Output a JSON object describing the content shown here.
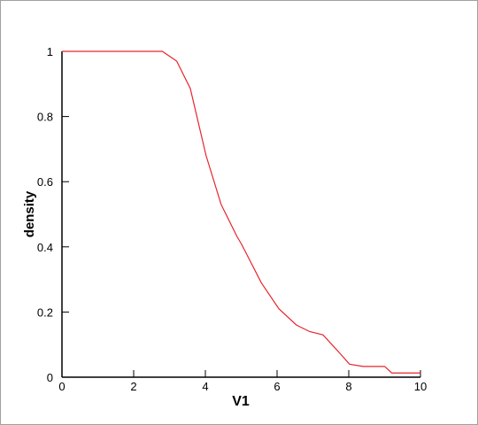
{
  "chart_data": {
    "type": "line",
    "xlabel": "V1",
    "ylabel": "density",
    "x": [
      0,
      1,
      2,
      2.8,
      3.2,
      3.58,
      4.02,
      4.44,
      4.89,
      5.0,
      5.14,
      5.56,
      6.05,
      6.54,
      6.91,
      7.28,
      7.53,
      7.78,
      8.02,
      8.4,
      9.0,
      9.2,
      9.5,
      10
    ],
    "values": [
      1,
      1,
      1,
      1,
      0.97,
      0.886,
      0.68,
      0.53,
      0.43,
      0.41,
      0.38,
      0.29,
      0.21,
      0.16,
      0.14,
      0.13,
      0.1,
      0.07,
      0.04,
      0.033,
      0.033,
      0.013,
      0.013,
      0.013
    ],
    "color": "#e8242c",
    "xlim": [
      0,
      10
    ],
    "xticks": [
      0,
      2,
      4,
      6,
      8,
      10
    ],
    "ylim": [
      0,
      1
    ],
    "yticks": [
      0,
      0.2,
      0.4,
      0.6,
      0.8,
      1
    ]
  }
}
